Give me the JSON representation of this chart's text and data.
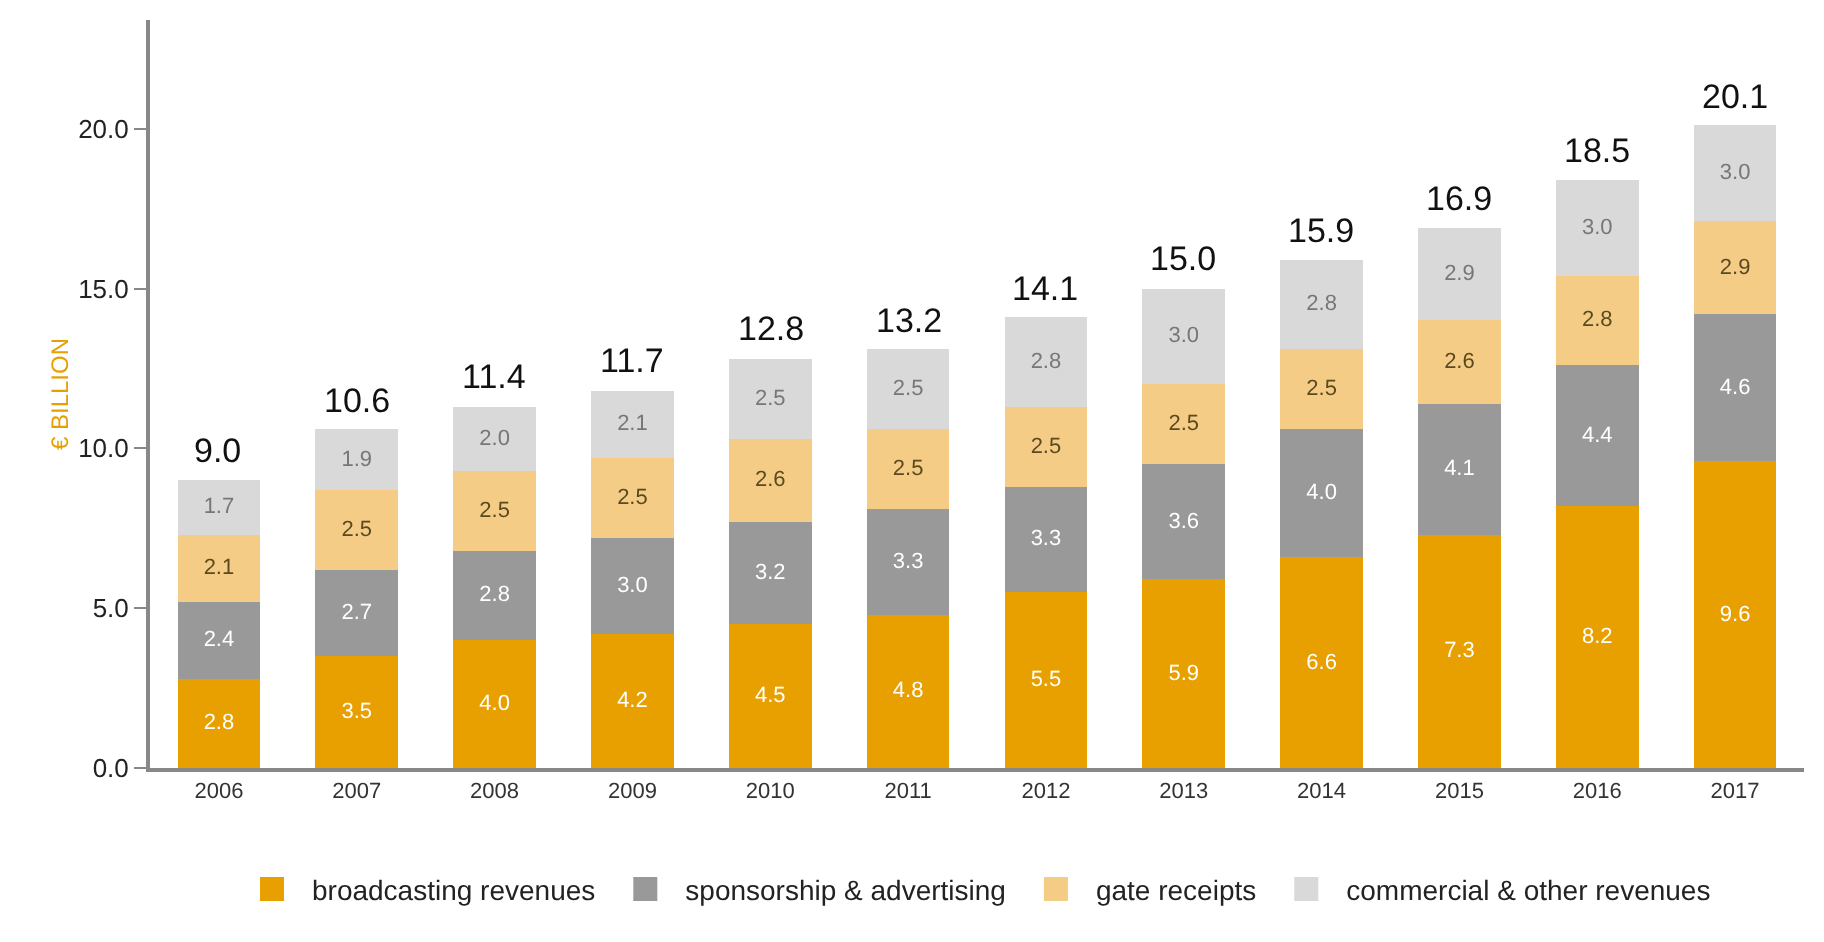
{
  "chart_data": {
    "type": "bar",
    "stacked": true,
    "ylabel": "€ BILLION",
    "categories": [
      "2006",
      "2007",
      "2008",
      "2009",
      "2010",
      "2011",
      "2012",
      "2013",
      "2014",
      "2015",
      "2016",
      "2017"
    ],
    "series": [
      {
        "name": "broadcasting revenues",
        "color": "#e8a000",
        "values": [
          2.8,
          3.5,
          4.0,
          4.2,
          4.5,
          4.8,
          5.5,
          5.9,
          6.6,
          7.3,
          8.2,
          9.6
        ],
        "value_labels": [
          "2.8",
          "3.5",
          "4.0",
          "4.2",
          "4.5",
          "4.8",
          "5.5",
          "5.9",
          "6.6",
          "7.3",
          "8.2",
          "9.6"
        ]
      },
      {
        "name": "sponsorship & advertising",
        "color": "#999999",
        "values": [
          2.4,
          2.7,
          2.8,
          3.0,
          3.2,
          3.3,
          3.3,
          3.6,
          4.0,
          4.1,
          4.4,
          4.6
        ],
        "value_labels": [
          "2.4",
          "2.7",
          "2.8",
          "3.0",
          "3.2",
          "3.3",
          "3.3",
          "3.6",
          "4.0",
          "4.1",
          "4.4",
          "4.6"
        ]
      },
      {
        "name": "gate receipts",
        "color": "#f5cc85",
        "values": [
          2.1,
          2.5,
          2.5,
          2.5,
          2.6,
          2.5,
          2.5,
          2.5,
          2.5,
          2.6,
          2.8,
          2.9
        ],
        "value_labels": [
          "2.1",
          "2.5",
          "2.5",
          "2.5",
          "2.6",
          "2.5",
          "2.5",
          "2.5",
          "2.5",
          "2.6",
          "2.8",
          "2.9"
        ]
      },
      {
        "name": "commercial & other revenues",
        "color": "#d9d9d9",
        "values": [
          1.7,
          1.9,
          2.0,
          2.1,
          2.5,
          2.5,
          2.8,
          3.0,
          2.8,
          2.9,
          3.0,
          3.0
        ],
        "value_labels": [
          "1.7",
          "1.9",
          "2.0",
          "2.1",
          "2.5",
          "2.5",
          "2.8",
          "3.0",
          "2.8",
          "2.9",
          "3.0",
          "3.0"
        ]
      }
    ],
    "totals": [
      "9.0",
      "10.6",
      "11.4",
      "11.7",
      "12.8",
      "13.2",
      "14.1",
      "15.0",
      "15.9",
      "16.9",
      "18.5",
      "20.1"
    ],
    "ylim": [
      0,
      23.4
    ],
    "yticks": [
      {
        "value": 0,
        "label": "0.0"
      },
      {
        "value": 5,
        "label": "5.0"
      },
      {
        "value": 10,
        "label": "10.0"
      },
      {
        "value": 15,
        "label": "15.0"
      },
      {
        "value": 20,
        "label": "20.0"
      }
    ],
    "grid": false,
    "legend": "bottom"
  }
}
